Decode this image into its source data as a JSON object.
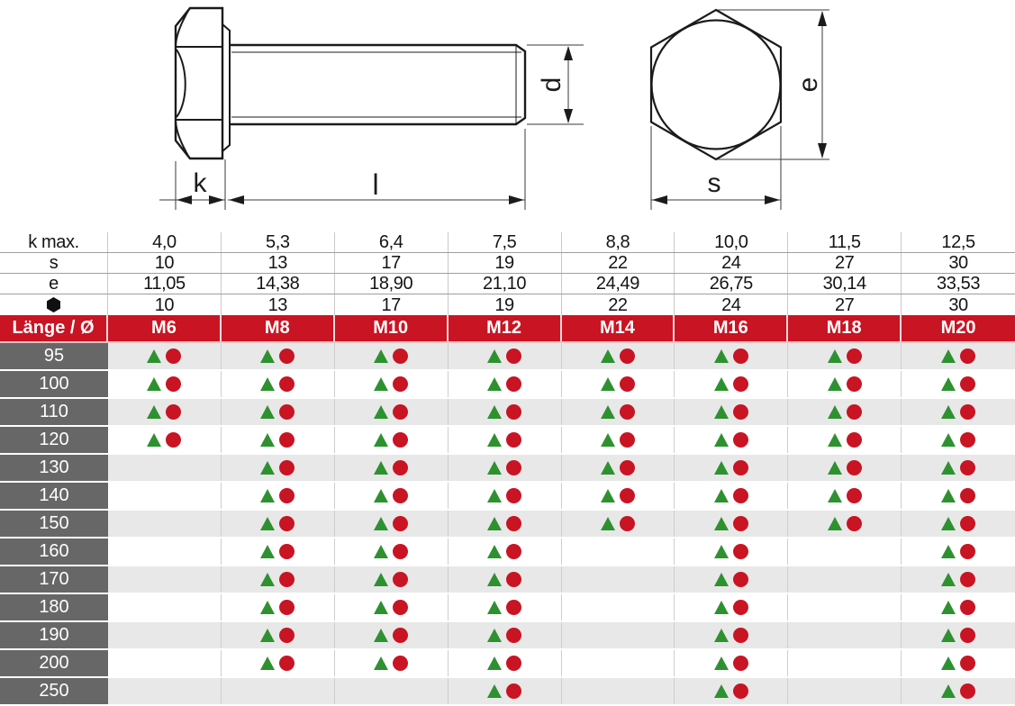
{
  "diagram": {
    "side_view": {
      "description": "hex head bolt side view with dimension arrows",
      "k_label": "k",
      "l_label": "l",
      "d_label": "d"
    },
    "top_view": {
      "description": "hex head top view: hexagon with inscribed circle",
      "e_label": "e",
      "s_label": "s"
    }
  },
  "icons": {
    "hex_row_icon": "hex-nut-icon",
    "availability_icons": [
      "triangle-icon",
      "circle-icon"
    ]
  },
  "table": {
    "spec_rows": [
      {
        "label": "k max.",
        "values": [
          "4,0",
          "5,3",
          "6,4",
          "7,5",
          "8,8",
          "10,0",
          "11,5",
          "12,5"
        ]
      },
      {
        "label": "s",
        "values": [
          "10",
          "13",
          "17",
          "19",
          "22",
          "24",
          "27",
          "30"
        ]
      },
      {
        "label": "e",
        "values": [
          "11,05",
          "14,38",
          "18,90",
          "21,10",
          "24,49",
          "26,75",
          "30,14",
          "33,53"
        ]
      },
      {
        "label": "",
        "icon": "hex-nut-icon",
        "values": [
          "10",
          "13",
          "17",
          "19",
          "22",
          "24",
          "27",
          "30"
        ]
      }
    ],
    "header": {
      "label": "Länge / Ø",
      "columns": [
        "M6",
        "M8",
        "M10",
        "M12",
        "M14",
        "M16",
        "M18",
        "M20"
      ]
    },
    "rows": [
      {
        "length": "95",
        "available": [
          1,
          1,
          1,
          1,
          1,
          1,
          1,
          1
        ]
      },
      {
        "length": "100",
        "available": [
          1,
          1,
          1,
          1,
          1,
          1,
          1,
          1
        ]
      },
      {
        "length": "110",
        "available": [
          1,
          1,
          1,
          1,
          1,
          1,
          1,
          1
        ]
      },
      {
        "length": "120",
        "available": [
          1,
          1,
          1,
          1,
          1,
          1,
          1,
          1
        ]
      },
      {
        "length": "130",
        "available": [
          0,
          1,
          1,
          1,
          1,
          1,
          1,
          1
        ]
      },
      {
        "length": "140",
        "available": [
          0,
          1,
          1,
          1,
          1,
          1,
          1,
          1
        ]
      },
      {
        "length": "150",
        "available": [
          0,
          1,
          1,
          1,
          1,
          1,
          1,
          1
        ]
      },
      {
        "length": "160",
        "available": [
          0,
          1,
          1,
          1,
          0,
          1,
          0,
          1
        ]
      },
      {
        "length": "170",
        "available": [
          0,
          1,
          1,
          1,
          0,
          1,
          0,
          1
        ]
      },
      {
        "length": "180",
        "available": [
          0,
          1,
          1,
          1,
          0,
          1,
          0,
          1
        ]
      },
      {
        "length": "190",
        "available": [
          0,
          1,
          1,
          1,
          0,
          1,
          0,
          1
        ]
      },
      {
        "length": "200",
        "available": [
          0,
          1,
          1,
          1,
          0,
          1,
          0,
          1
        ]
      },
      {
        "length": "250",
        "available": [
          0,
          0,
          0,
          1,
          0,
          1,
          0,
          1
        ]
      }
    ]
  },
  "colors": {
    "red": "#c91423",
    "green": "#2e9130",
    "darkgray": "#676767",
    "rowgray": "#e8e8e8",
    "line": "#1b1b1b"
  }
}
